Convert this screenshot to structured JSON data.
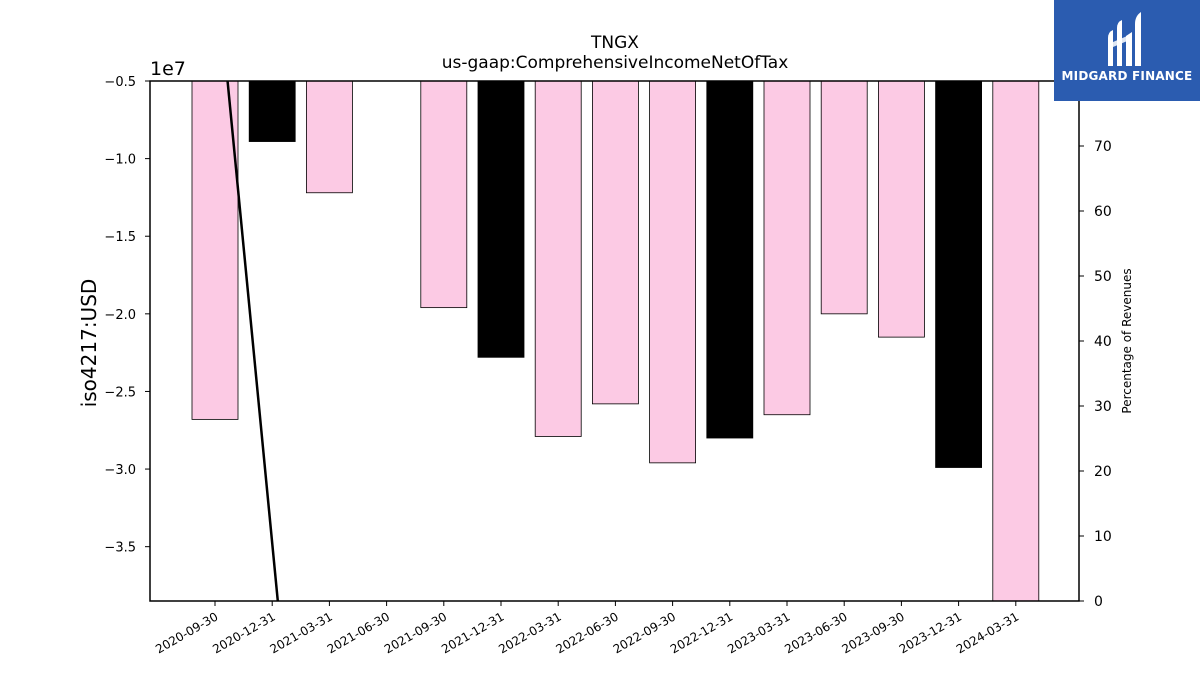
{
  "chart_data": {
    "type": "bar",
    "title": "TNGX",
    "subtitle": "us-gaap:ComprehensiveIncomeNetOfTax",
    "ylabel": "iso4217:USD",
    "y_offset_label": "1e7",
    "y2label": "Percentage of Revenues",
    "categories": [
      "2020-09-30",
      "2020-12-31",
      "2021-03-31",
      "2021-06-30",
      "2021-09-30",
      "2021-12-31",
      "2022-03-31",
      "2022-06-30",
      "2022-09-30",
      "2022-12-31",
      "2023-03-31",
      "2023-06-30",
      "2023-09-30",
      "2023-12-31",
      "2024-03-31"
    ],
    "series": [
      {
        "values": [
          -26800000,
          -8900000,
          -12200000,
          null,
          -19600000,
          -22800000,
          -27900000,
          -25800000,
          -29600000,
          -28000000,
          -26500000,
          -20000000,
          -21500000,
          -29900000,
          -39000000
        ],
        "highlight": [
          false,
          true,
          false,
          false,
          false,
          true,
          false,
          false,
          false,
          true,
          false,
          false,
          false,
          true,
          false
        ],
        "color": "#fccae4",
        "highlight_color": "#000000"
      }
    ],
    "line": {
      "x": [
        "2020-09-30",
        "2021-01-09"
      ],
      "y2": [
        100,
        0
      ]
    },
    "yticks": [
      -0.5,
      -1.0,
      -1.5,
      -2.0,
      -2.5,
      -3.0,
      -3.5
    ],
    "ylim": [
      -38500000,
      -5000000
    ],
    "y2ticks": [
      0,
      10,
      20,
      30,
      40,
      50,
      60,
      70
    ],
    "y2lim": [
      0,
      80
    ],
    "grid": false,
    "legend": "none"
  },
  "logo": {
    "text": "MIDGARD FINANCE"
  }
}
